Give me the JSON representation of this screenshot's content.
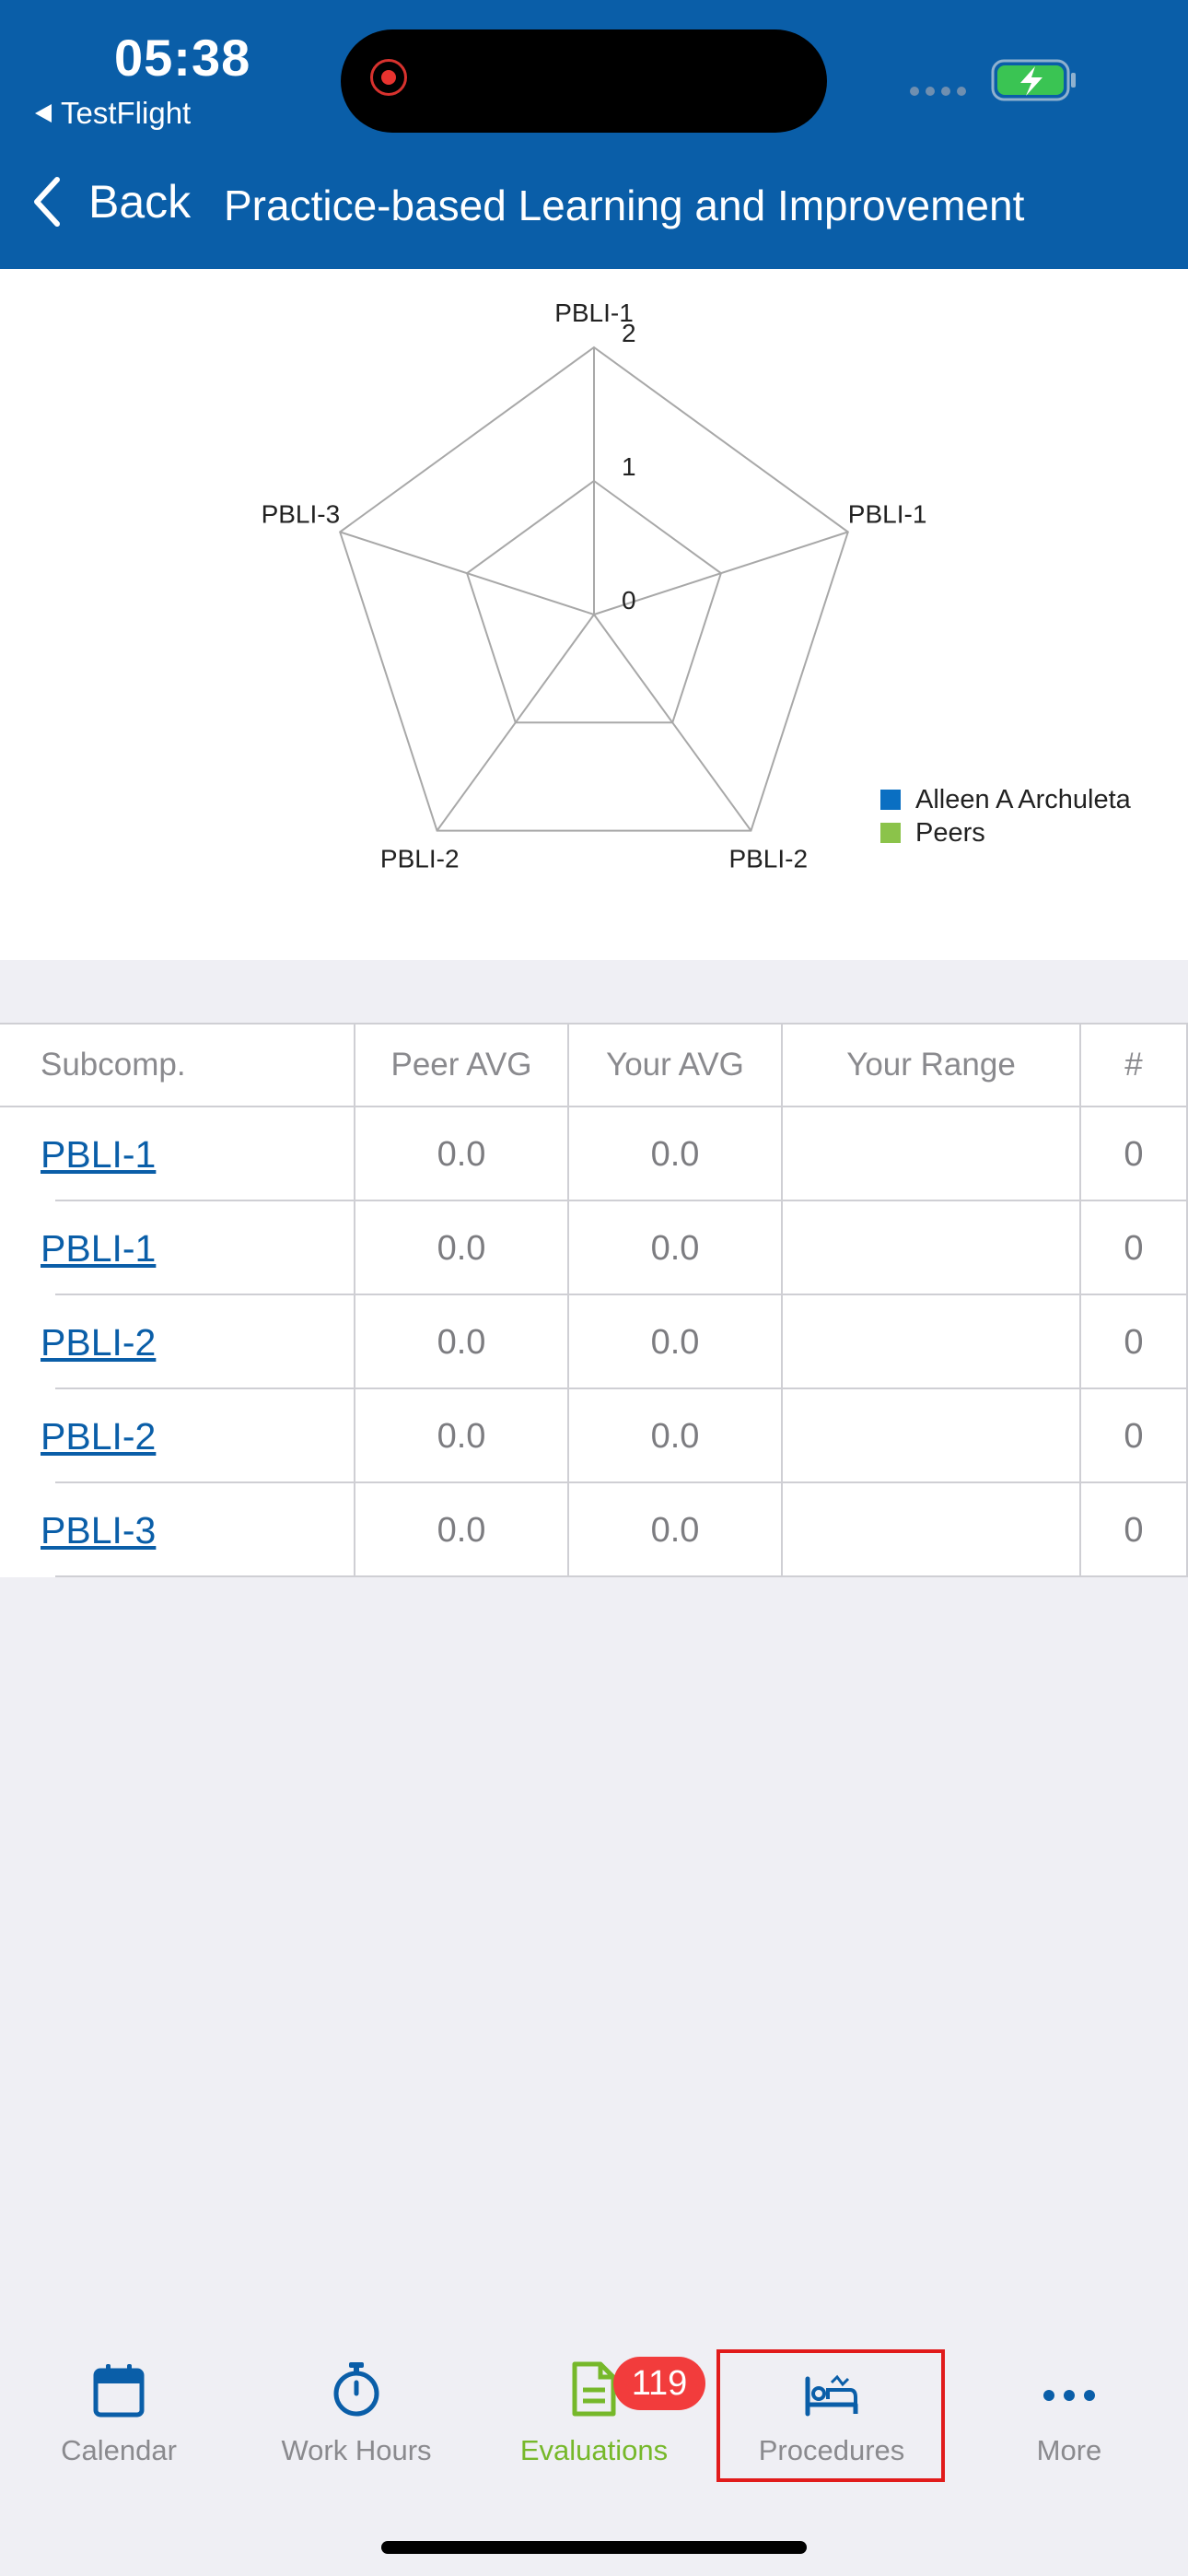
{
  "status_bar": {
    "time": "05:38",
    "back_app": "TestFlight"
  },
  "nav": {
    "back_label": "Back",
    "title": "Practice-based Learning and Improvement"
  },
  "chart_data": {
    "type": "radar",
    "axes": [
      "PBLI-1",
      "PBLI-1",
      "PBLI-2",
      "PBLI-2",
      "PBLI-3"
    ],
    "scale_ticks": [
      "0",
      "1",
      "2"
    ],
    "range": [
      0,
      2
    ],
    "series": [
      {
        "name": "Alleen A Archuleta",
        "color": "#0a6fc2",
        "values": [
          0,
          0,
          0,
          0,
          0
        ]
      },
      {
        "name": "Peers",
        "color": "#8bc34a",
        "values": [
          0,
          0,
          0,
          0,
          0
        ]
      }
    ],
    "legend_position": "bottom-right"
  },
  "table": {
    "headers": [
      "Subcomp.",
      "Peer AVG",
      "Your AVG",
      "Your Range",
      "#"
    ],
    "rows": [
      {
        "subcomp": "PBLI-1",
        "peer_avg": "0.0",
        "your_avg": "0.0",
        "range": "",
        "count": "0"
      },
      {
        "subcomp": "PBLI-1",
        "peer_avg": "0.0",
        "your_avg": "0.0",
        "range": "",
        "count": "0"
      },
      {
        "subcomp": "PBLI-2",
        "peer_avg": "0.0",
        "your_avg": "0.0",
        "range": "",
        "count": "0"
      },
      {
        "subcomp": "PBLI-2",
        "peer_avg": "0.0",
        "your_avg": "0.0",
        "range": "",
        "count": "0"
      },
      {
        "subcomp": "PBLI-3",
        "peer_avg": "0.0",
        "your_avg": "0.0",
        "range": "",
        "count": "0"
      }
    ]
  },
  "tabbar": {
    "tabs": [
      {
        "label": "Calendar",
        "icon": "calendar-icon"
      },
      {
        "label": "Work Hours",
        "icon": "stopwatch-icon"
      },
      {
        "label": "Evaluations",
        "icon": "document-icon",
        "badge": "119",
        "active": true
      },
      {
        "label": "Procedures",
        "icon": "hospital-bed-icon"
      },
      {
        "label": "More",
        "icon": "more-dots-icon"
      }
    ]
  },
  "colors": {
    "header": "#0a5ea8",
    "active_tab": "#76b82a",
    "badge": "#f23c3c",
    "link": "#0a5ea8"
  }
}
